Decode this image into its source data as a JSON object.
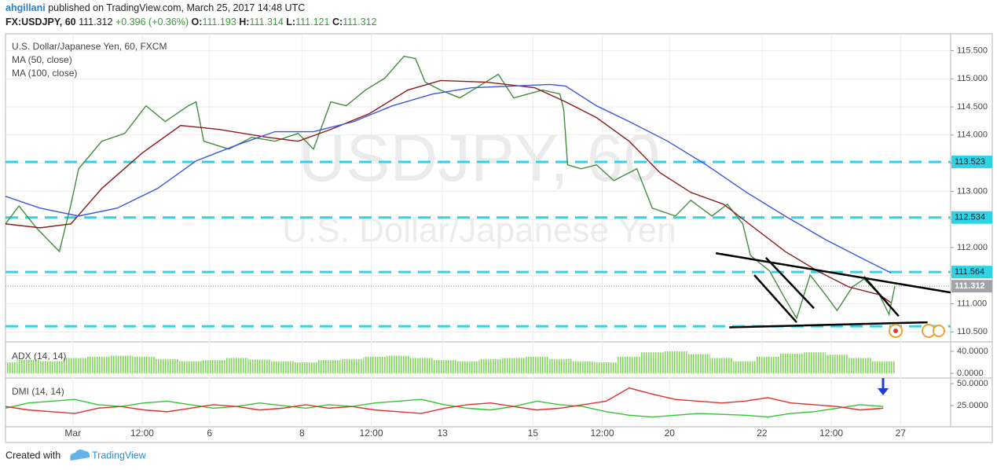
{
  "header": {
    "author": "ahgillani",
    "published": "published on TradingView.com, March 25, 2017 14:48 UTC",
    "symbol": "FX:USDJPY, 60",
    "price": "111.312",
    "change": "+0.396 (+0.36%)",
    "ohlc": [
      {
        "label": "O:",
        "value": "111.193"
      },
      {
        "label": "H:",
        "value": "111.314"
      },
      {
        "label": "L:",
        "value": "111.121"
      },
      {
        "label": "C:",
        "value": "111.312"
      }
    ]
  },
  "chart_data": [
    {
      "type": "line",
      "watermark": "USDJPY, 60",
      "watermark_sub": "U.S. Dollar/Japanese Yen",
      "xlim": [
        0,
        491
      ],
      "ylim": [
        110.35,
        115.8
      ],
      "yticks": [
        {
          "value": 110.5,
          "label": "110.500"
        },
        {
          "value": 111,
          "label": "111.000"
        },
        {
          "value": 111.5,
          "label": "111.500"
        },
        {
          "value": 112,
          "label": "112.000"
        },
        {
          "value": 112.5,
          "label": "112.500"
        },
        {
          "value": 113,
          "label": "113.000"
        },
        {
          "value": 113.5,
          "label": "113.500"
        },
        {
          "value": 114,
          "label": "114.000"
        },
        {
          "value": 114.5,
          "label": "114.500"
        },
        {
          "value": 115,
          "label": "115.000"
        },
        {
          "value": 115.5,
          "label": "115.500"
        }
      ],
      "grid": true,
      "levels": [
        113.523,
        112.534,
        111.564
      ],
      "level_color": "#2fd3e6",
      "support_level": 110.6,
      "last_price": 111.312,
      "series": [
        {
          "name": "U.S. Dollar/Japanese Yen, 60, FXCM",
          "color": "#3f8f3f",
          "x": [
            0,
            7,
            16,
            28,
            34,
            38,
            50,
            62,
            73,
            83,
            95,
            99,
            103,
            116,
            128,
            140,
            152,
            160,
            169,
            177,
            187,
            197,
            207,
            213,
            218,
            226,
            236,
            246,
            256,
            264,
            279,
            288,
            290,
            292,
            299,
            307,
            316,
            328,
            336,
            348,
            356,
            367,
            375,
            383,
            387,
            397,
            405,
            411,
            418,
            426,
            432,
            440,
            446,
            454,
            459,
            462
          ],
          "values": [
            112.42,
            112.74,
            112.35,
            111.93,
            112.77,
            113.4,
            113.89,
            114.03,
            114.52,
            114.24,
            114.52,
            114.59,
            113.89,
            113.75,
            113.96,
            113.89,
            114.03,
            113.75,
            114.59,
            114.52,
            114.8,
            115.01,
            115.4,
            115.36,
            114.94,
            114.8,
            114.66,
            114.87,
            115.08,
            114.66,
            114.8,
            114.73,
            114.45,
            113.47,
            113.4,
            113.47,
            113.19,
            113.4,
            112.7,
            112.56,
            112.84,
            112.56,
            112.77,
            112.42,
            111.86,
            111.58,
            111.09,
            110.74,
            111.51,
            111.16,
            110.88,
            111.3,
            111.44,
            111.16,
            110.81,
            111.312
          ]
        },
        {
          "name": "MA (50, close)",
          "color": "#8b1a1a",
          "x": [
            0,
            18,
            34,
            50,
            71,
            91,
            111,
            136,
            152,
            169,
            189,
            209,
            226,
            250,
            275,
            291,
            307,
            324,
            340,
            356,
            373,
            389,
            405,
            422,
            438,
            454,
            460
          ],
          "values": [
            112.42,
            112.35,
            112.42,
            113.05,
            113.68,
            114.17,
            114.1,
            113.96,
            113.89,
            114.1,
            114.38,
            114.8,
            114.97,
            114.94,
            114.84,
            114.59,
            114.31,
            113.89,
            113.33,
            112.98,
            112.77,
            112.35,
            111.93,
            111.58,
            111.3,
            111.16,
            111.02
          ]
        },
        {
          "name": "MA (100, close)",
          "color": "#3a56e0",
          "x": [
            0,
            18,
            38,
            58,
            79,
            99,
            120,
            140,
            160,
            181,
            201,
            222,
            242,
            263,
            283,
            291,
            307,
            324,
            344,
            364,
            385,
            405,
            426,
            446,
            460
          ],
          "values": [
            112.91,
            112.7,
            112.56,
            112.7,
            113.05,
            113.54,
            113.82,
            114.06,
            114.06,
            114.24,
            114.52,
            114.73,
            114.84,
            114.87,
            114.9,
            114.87,
            114.52,
            114.24,
            113.89,
            113.47,
            112.98,
            112.56,
            112.14,
            111.79,
            111.55
          ]
        }
      ],
      "trendlines": [
        {
          "x": [
            369,
            491
          ],
          "y": [
            111.9,
            111.2
          ]
        },
        {
          "x": [
            389,
            411
          ],
          "y": [
            111.51,
            110.67
          ]
        },
        {
          "x": [
            395,
            420
          ],
          "y": [
            111.82,
            110.92
          ]
        },
        {
          "x": [
            446,
            464
          ],
          "y": [
            111.48,
            110.78
          ]
        },
        {
          "x": [
            376,
            479
          ],
          "y": [
            110.58,
            110.67
          ]
        }
      ]
    },
    {
      "type": "bar",
      "title": "ADX (14, 14)",
      "xlim": [
        0,
        491
      ],
      "ylim": [
        -5.7,
        54.3
      ],
      "yticks": [
        {
          "value": 40,
          "label": "40.0000"
        },
        {
          "value": 0,
          "label": "0.0000"
        }
      ],
      "series": [
        {
          "color": "#7ed957",
          "x": [
            0,
            12,
            24,
            36,
            48,
            60,
            72,
            84,
            96,
            108,
            120,
            132,
            144,
            156,
            168,
            180,
            192,
            204,
            216,
            228,
            240,
            252,
            264,
            276,
            288,
            300,
            312,
            324,
            336,
            348,
            360,
            372,
            384,
            396,
            408,
            420,
            432,
            444,
            456
          ],
          "values": [
            20,
            25,
            22,
            28,
            30,
            32,
            30,
            26,
            22,
            24,
            28,
            25,
            22,
            20,
            24,
            26,
            30,
            32,
            28,
            24,
            22,
            26,
            28,
            30,
            26,
            22,
            20,
            30,
            38,
            40,
            35,
            28,
            22,
            30,
            36,
            38,
            34,
            28,
            22
          ]
        }
      ]
    },
    {
      "type": "line",
      "title": "DMI (14, 14)",
      "xlim": [
        0,
        491
      ],
      "ylim": [
        0.9,
        55.4
      ],
      "yticks": [
        {
          "value": 50,
          "label": "50.0000"
        },
        {
          "value": 25,
          "label": "25.0000"
        }
      ],
      "xticks": [
        {
          "value": 35,
          "label": "Mar"
        },
        {
          "value": 71,
          "label": "12:00"
        },
        {
          "value": 106,
          "label": "6"
        },
        {
          "value": 154,
          "label": "8"
        },
        {
          "value": 190,
          "label": "12:00"
        },
        {
          "value": 227,
          "label": "13"
        },
        {
          "value": 274,
          "label": "15"
        },
        {
          "value": 310,
          "label": "12:00"
        },
        {
          "value": 345,
          "label": "20"
        },
        {
          "value": 393,
          "label": "22"
        },
        {
          "value": 429,
          "label": "12:00"
        },
        {
          "value": 465,
          "label": "27"
        }
      ],
      "series": [
        {
          "color": "#33c433",
          "x": [
            0,
            12,
            24,
            36,
            48,
            60,
            72,
            84,
            96,
            108,
            120,
            132,
            144,
            156,
            168,
            180,
            192,
            204,
            216,
            228,
            240,
            252,
            264,
            276,
            288,
            300,
            312,
            324,
            336,
            348,
            360,
            372,
            384,
            396,
            408,
            420,
            432,
            444,
            456
          ],
          "values": [
            22,
            28,
            30,
            32,
            26,
            24,
            28,
            30,
            26,
            22,
            24,
            28,
            25,
            22,
            26,
            24,
            28,
            30,
            32,
            26,
            22,
            20,
            24,
            30,
            26,
            24,
            18,
            14,
            12,
            14,
            16,
            15,
            14,
            12,
            16,
            18,
            22,
            26,
            24
          ]
        },
        {
          "color": "#e02f2f",
          "x": [
            0,
            12,
            24,
            36,
            48,
            60,
            72,
            84,
            96,
            108,
            120,
            132,
            144,
            156,
            168,
            180,
            192,
            204,
            216,
            228,
            240,
            252,
            264,
            276,
            288,
            300,
            312,
            324,
            336,
            348,
            360,
            372,
            384,
            396,
            408,
            420,
            432,
            444,
            456
          ],
          "values": [
            24,
            20,
            18,
            16,
            22,
            24,
            20,
            18,
            22,
            26,
            24,
            20,
            22,
            26,
            22,
            24,
            20,
            18,
            16,
            22,
            26,
            28,
            24,
            20,
            22,
            26,
            30,
            45,
            38,
            32,
            30,
            28,
            30,
            34,
            28,
            26,
            24,
            20,
            22
          ]
        }
      ]
    }
  ],
  "footer": {
    "created": "Created with",
    "brand": "TradingView"
  }
}
